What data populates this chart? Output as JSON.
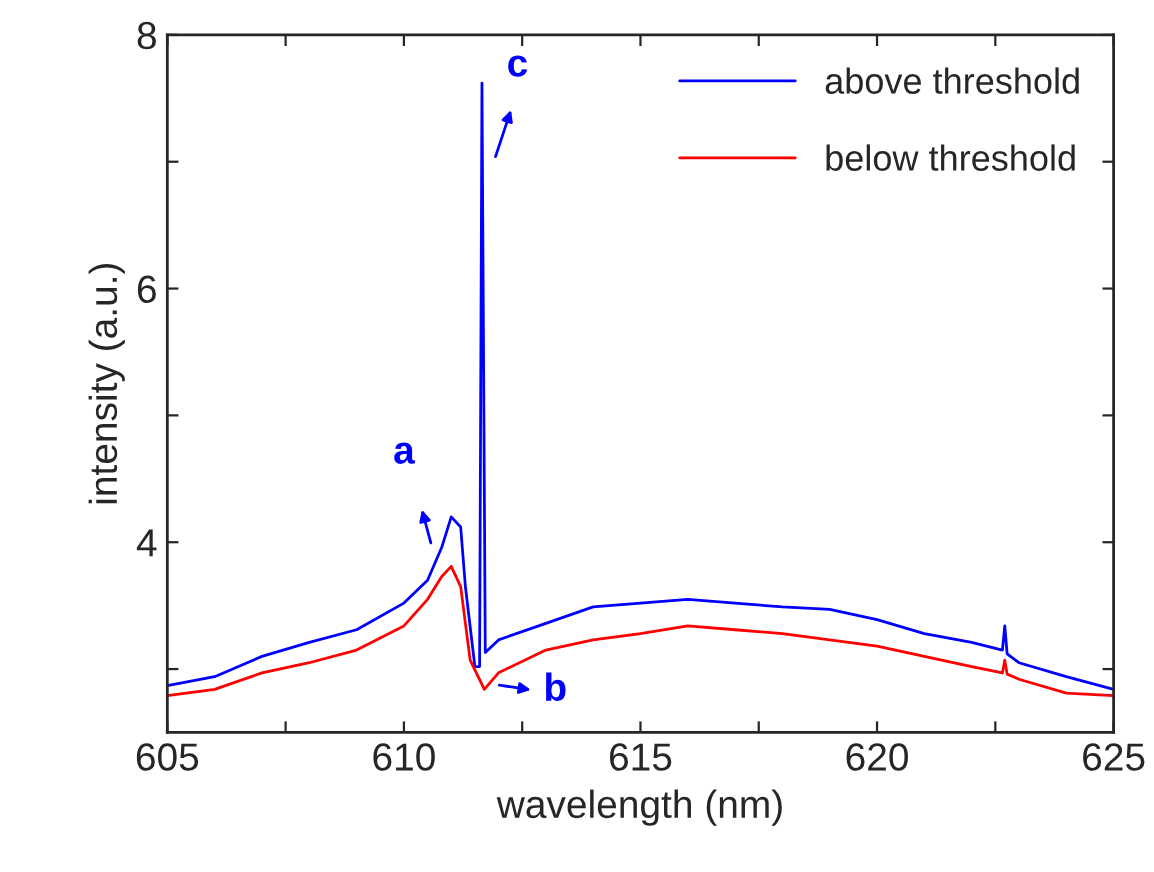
{
  "chart_data": {
    "type": "line",
    "xlabel": "wavelength (nm)",
    "ylabel": "intensity (a.u.)",
    "xlim": [
      605,
      625
    ],
    "ylim": [
      2.5,
      8
    ],
    "xticks": [
      605,
      {
        "value": 607.5,
        "label": null
      },
      610,
      {
        "value": 612.5,
        "label": null
      },
      615,
      {
        "value": 617.5,
        "label": null
      },
      620,
      {
        "value": 622.5,
        "label": null
      },
      625
    ],
    "yticks": [
      {
        "value": 3,
        "label": null
      },
      4,
      {
        "value": 5,
        "label": null
      },
      6,
      {
        "value": 7,
        "label": null
      },
      8
    ],
    "grid": false,
    "legend": "top right",
    "marker": "none",
    "line_style": "solid",
    "series": [
      {
        "name": "above threshold",
        "color": "#0000ff",
        "x": [
          605,
          606,
          607,
          608,
          609,
          610,
          610.5,
          610.8,
          611.0,
          611.2,
          611.3,
          611.5,
          611.6,
          611.65,
          611.72,
          612,
          613,
          614,
          615,
          616,
          617,
          618,
          619,
          620,
          621,
          622,
          622.65,
          622.7,
          622.75,
          623,
          624,
          625
        ],
        "values": [
          2.87,
          2.94,
          3.1,
          3.21,
          3.31,
          3.52,
          3.7,
          3.96,
          4.2,
          4.12,
          3.65,
          3.02,
          3.02,
          7.62,
          3.13,
          3.23,
          3.36,
          3.49,
          3.52,
          3.55,
          3.52,
          3.49,
          3.47,
          3.39,
          3.28,
          3.21,
          3.15,
          3.34,
          3.12,
          3.05,
          2.94,
          2.84
        ]
      },
      {
        "name": "below threshold",
        "color": "#ff0000",
        "x": [
          605,
          606,
          607,
          608,
          609,
          610,
          610.5,
          610.8,
          611.0,
          611.2,
          611.4,
          611.7,
          612,
          613,
          614,
          615,
          616,
          617,
          618,
          619,
          620,
          621,
          622,
          622.65,
          622.7,
          622.75,
          623,
          624,
          625
        ],
        "values": [
          2.79,
          2.84,
          2.97,
          3.05,
          3.15,
          3.34,
          3.55,
          3.73,
          3.81,
          3.65,
          3.07,
          2.84,
          2.97,
          3.15,
          3.23,
          3.28,
          3.34,
          3.31,
          3.28,
          3.23,
          3.18,
          3.1,
          3.02,
          2.97,
          3.07,
          2.96,
          2.92,
          2.81,
          2.79
        ]
      }
    ],
    "annotations": [
      "a",
      "b",
      "c"
    ]
  }
}
